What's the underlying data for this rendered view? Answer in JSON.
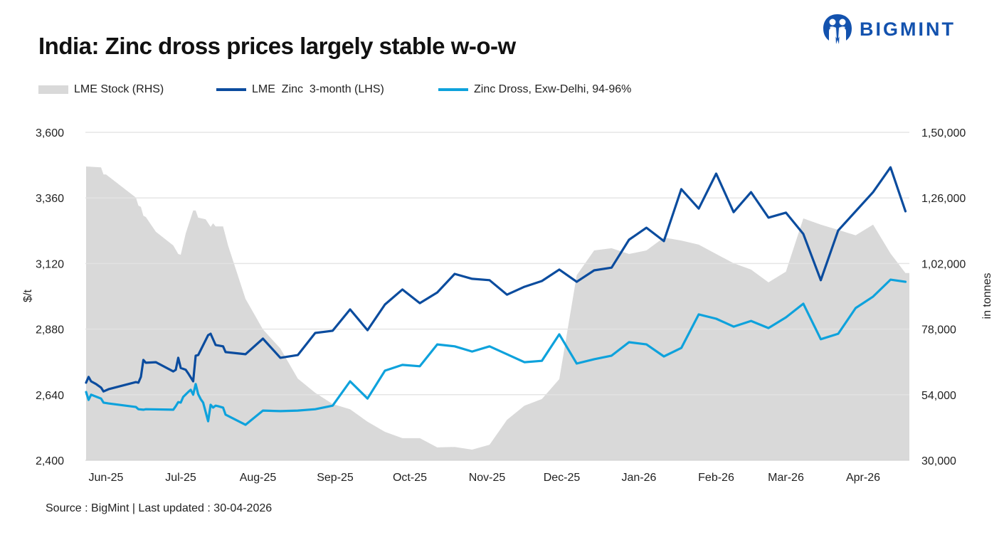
{
  "header": {
    "title": "India: Zinc dross prices largely stable w-o-w",
    "logo_text": "BIGMINT"
  },
  "footer": {
    "source": "Source : BigMint | Last updated : 30-04-2026"
  },
  "colors": {
    "lme_stock": "#d9d9d9",
    "lme_zinc": "#0b4c9e",
    "zinc_dross": "#0ea2dc",
    "grid": "#e3e3e3",
    "brand": "#1352ae"
  },
  "chart_data": {
    "type": "line",
    "title": "India: Zinc dross prices largely stable w-o-w",
    "ylabel": "$/t",
    "y2label": "in tonnes",
    "ylim": [
      2400,
      3600
    ],
    "y2lim": [
      30000,
      150000
    ],
    "xlim": [
      "2025-06-05",
      "2026-05-01"
    ],
    "grid": true,
    "legend_placement": "top",
    "yticks": [
      "2,400",
      "2,640",
      "2,880",
      "3,120",
      "3,360",
      "3,600"
    ],
    "y2ticks": [
      "30,000",
      "54,000",
      "78,000",
      "1,02,000",
      "1,26,000",
      "1,50,000"
    ],
    "xtick_labels": [
      "Jun-25",
      "Jul-25",
      "Aug-25",
      "Sep-25",
      "Oct-25",
      "Nov-25",
      "Dec-25",
      "Jan-26",
      "Feb-26",
      "Mar-26",
      "Apr-26"
    ],
    "series": [
      {
        "name": "LME Stock (RHS)",
        "type": "area",
        "axis": "right",
        "points": [
          [
            "2025-06-05",
            137500
          ],
          [
            "2025-06-11",
            137200
          ],
          [
            "2025-06-12",
            134600
          ],
          [
            "2025-06-13",
            134600
          ],
          [
            "2025-06-25",
            126100
          ],
          [
            "2025-06-26",
            123200
          ],
          [
            "2025-06-27",
            122700
          ],
          [
            "2025-06-28",
            119500
          ],
          [
            "2025-06-29",
            119000
          ],
          [
            "2025-07-03",
            113600
          ],
          [
            "2025-07-10",
            108600
          ],
          [
            "2025-07-12",
            105500
          ],
          [
            "2025-07-13",
            105200
          ],
          [
            "2025-07-15",
            113000
          ],
          [
            "2025-07-18",
            121400
          ],
          [
            "2025-07-19",
            121400
          ],
          [
            "2025-07-20",
            118800
          ],
          [
            "2025-07-23",
            118200
          ],
          [
            "2025-07-25",
            115400
          ],
          [
            "2025-07-26",
            116700
          ],
          [
            "2025-07-27",
            115600
          ],
          [
            "2025-07-30",
            115600
          ],
          [
            "2025-08-01",
            108600
          ],
          [
            "2025-08-08",
            89100
          ],
          [
            "2025-08-15",
            77900
          ],
          [
            "2025-08-22",
            70900
          ],
          [
            "2025-08-29",
            59900
          ],
          [
            "2025-09-05",
            54700
          ],
          [
            "2025-09-12",
            50600
          ],
          [
            "2025-09-19",
            48700
          ],
          [
            "2025-09-26",
            44100
          ],
          [
            "2025-10-03",
            40400
          ],
          [
            "2025-10-10",
            38100
          ],
          [
            "2025-10-17",
            38100
          ],
          [
            "2025-10-24",
            34700
          ],
          [
            "2025-10-31",
            34900
          ],
          [
            "2025-11-07",
            33900
          ],
          [
            "2025-11-14",
            35700
          ],
          [
            "2025-11-21",
            44800
          ],
          [
            "2025-11-28",
            50000
          ],
          [
            "2025-12-05",
            52400
          ],
          [
            "2025-12-12",
            59700
          ],
          [
            "2025-12-19",
            97700
          ],
          [
            "2025-12-26",
            106800
          ],
          [
            "2026-01-02",
            107600
          ],
          [
            "2026-01-09",
            105500
          ],
          [
            "2026-01-16",
            106800
          ],
          [
            "2026-01-23",
            111500
          ],
          [
            "2026-01-30",
            110400
          ],
          [
            "2026-02-06",
            108900
          ],
          [
            "2026-02-13",
            105500
          ],
          [
            "2026-02-20",
            102100
          ],
          [
            "2026-02-27",
            99800
          ],
          [
            "2026-03-06",
            95100
          ],
          [
            "2026-03-13",
            99000
          ],
          [
            "2026-03-20",
            118500
          ],
          [
            "2026-03-27",
            116200
          ],
          [
            "2026-04-03",
            114300
          ],
          [
            "2026-04-10",
            112300
          ],
          [
            "2026-04-17",
            116200
          ],
          [
            "2026-04-24",
            105700
          ],
          [
            "2026-04-30",
            98500
          ]
        ]
      },
      {
        "name": "LME  Zinc  3-month (LHS)",
        "type": "line",
        "axis": "left",
        "points": [
          [
            "2025-06-05",
            2684
          ],
          [
            "2025-06-06",
            2705
          ],
          [
            "2025-06-07",
            2689
          ],
          [
            "2025-06-09",
            2679
          ],
          [
            "2025-06-11",
            2666
          ],
          [
            "2025-06-12",
            2652
          ],
          [
            "2025-06-14",
            2660
          ],
          [
            "2025-06-25",
            2686
          ],
          [
            "2025-06-26",
            2684
          ],
          [
            "2025-06-27",
            2705
          ],
          [
            "2025-06-28",
            2767
          ],
          [
            "2025-06-29",
            2757
          ],
          [
            "2025-07-03",
            2759
          ],
          [
            "2025-07-10",
            2725
          ],
          [
            "2025-07-11",
            2731
          ],
          [
            "2025-07-12",
            2775
          ],
          [
            "2025-07-13",
            2738
          ],
          [
            "2025-07-15",
            2731
          ],
          [
            "2025-07-16",
            2718
          ],
          [
            "2025-07-18",
            2689
          ],
          [
            "2025-07-19",
            2783
          ],
          [
            "2025-07-20",
            2785
          ],
          [
            "2025-07-24",
            2858
          ],
          [
            "2025-07-25",
            2863
          ],
          [
            "2025-07-27",
            2822
          ],
          [
            "2025-07-30",
            2817
          ],
          [
            "2025-07-31",
            2796
          ],
          [
            "2025-08-08",
            2788
          ],
          [
            "2025-08-15",
            2845
          ],
          [
            "2025-08-22",
            2775
          ],
          [
            "2025-08-29",
            2785
          ],
          [
            "2025-09-05",
            2866
          ],
          [
            "2025-09-12",
            2874
          ],
          [
            "2025-09-19",
            2952
          ],
          [
            "2025-09-26",
            2876
          ],
          [
            "2025-10-03",
            2970
          ],
          [
            "2025-10-10",
            3025
          ],
          [
            "2025-10-17",
            2975
          ],
          [
            "2025-10-24",
            3014
          ],
          [
            "2025-10-31",
            3082
          ],
          [
            "2025-11-07",
            3064
          ],
          [
            "2025-11-14",
            3059
          ],
          [
            "2025-11-21",
            3006
          ],
          [
            "2025-11-28",
            3035
          ],
          [
            "2025-12-05",
            3056
          ],
          [
            "2025-12-12",
            3098
          ],
          [
            "2025-12-19",
            3053
          ],
          [
            "2025-12-26",
            3095
          ],
          [
            "2026-01-02",
            3105
          ],
          [
            "2026-01-09",
            3207
          ],
          [
            "2026-01-16",
            3251
          ],
          [
            "2026-01-23",
            3202
          ],
          [
            "2026-01-30",
            3392
          ],
          [
            "2026-02-06",
            3321
          ],
          [
            "2026-02-13",
            3449
          ],
          [
            "2026-02-20",
            3308
          ],
          [
            "2026-02-27",
            3381
          ],
          [
            "2026-03-06",
            3288
          ],
          [
            "2026-03-13",
            3306
          ],
          [
            "2026-03-20",
            3228
          ],
          [
            "2026-03-27",
            3059
          ],
          [
            "2026-04-03",
            3241
          ],
          [
            "2026-04-10",
            3311
          ],
          [
            "2026-04-17",
            3381
          ],
          [
            "2026-04-24",
            3472
          ],
          [
            "2026-04-30",
            3311
          ]
        ]
      },
      {
        "name": "Zinc Dross, Exw-Delhi, 94-96%",
        "type": "line",
        "axis": "left",
        "points": [
          [
            "2025-06-05",
            2650
          ],
          [
            "2025-06-06",
            2621
          ],
          [
            "2025-06-07",
            2640
          ],
          [
            "2025-06-11",
            2626
          ],
          [
            "2025-06-12",
            2611
          ],
          [
            "2025-06-14",
            2608
          ],
          [
            "2025-06-25",
            2595
          ],
          [
            "2025-06-26",
            2587
          ],
          [
            "2025-06-28",
            2585
          ],
          [
            "2025-06-29",
            2587
          ],
          [
            "2025-07-10",
            2585
          ],
          [
            "2025-07-11",
            2598
          ],
          [
            "2025-07-12",
            2613
          ],
          [
            "2025-07-13",
            2611
          ],
          [
            "2025-07-14",
            2632
          ],
          [
            "2025-07-16",
            2650
          ],
          [
            "2025-07-17",
            2658
          ],
          [
            "2025-07-18",
            2640
          ],
          [
            "2025-07-19",
            2679
          ],
          [
            "2025-07-20",
            2642
          ],
          [
            "2025-07-21",
            2624
          ],
          [
            "2025-07-22",
            2611
          ],
          [
            "2025-07-24",
            2543
          ],
          [
            "2025-07-25",
            2603
          ],
          [
            "2025-07-26",
            2593
          ],
          [
            "2025-07-27",
            2600
          ],
          [
            "2025-07-28",
            2598
          ],
          [
            "2025-07-30",
            2593
          ],
          [
            "2025-07-31",
            2567
          ],
          [
            "2025-08-08",
            2530
          ],
          [
            "2025-08-15",
            2582
          ],
          [
            "2025-08-22",
            2580
          ],
          [
            "2025-08-29",
            2582
          ],
          [
            "2025-09-05",
            2587
          ],
          [
            "2025-09-12",
            2600
          ],
          [
            "2025-09-19",
            2689
          ],
          [
            "2025-09-26",
            2626
          ],
          [
            "2025-10-03",
            2728
          ],
          [
            "2025-10-10",
            2749
          ],
          [
            "2025-10-17",
            2744
          ],
          [
            "2025-10-24",
            2824
          ],
          [
            "2025-10-31",
            2817
          ],
          [
            "2025-11-07",
            2798
          ],
          [
            "2025-11-14",
            2817
          ],
          [
            "2025-11-21",
            2788
          ],
          [
            "2025-11-28",
            2759
          ],
          [
            "2025-12-05",
            2764
          ],
          [
            "2025-12-12",
            2861
          ],
          [
            "2025-12-19",
            2754
          ],
          [
            "2025-12-26",
            2770
          ],
          [
            "2026-01-02",
            2783
          ],
          [
            "2026-01-09",
            2832
          ],
          [
            "2026-01-16",
            2824
          ],
          [
            "2026-01-23",
            2780
          ],
          [
            "2026-01-30",
            2811
          ],
          [
            "2026-02-06",
            2934
          ],
          [
            "2026-02-13",
            2918
          ],
          [
            "2026-02-20",
            2889
          ],
          [
            "2026-02-27",
            2910
          ],
          [
            "2026-03-06",
            2884
          ],
          [
            "2026-03-13",
            2923
          ],
          [
            "2026-03-20",
            2973
          ],
          [
            "2026-03-27",
            2843
          ],
          [
            "2026-04-03",
            2863
          ],
          [
            "2026-04-10",
            2957
          ],
          [
            "2026-04-17",
            2999
          ],
          [
            "2026-04-24",
            3061
          ],
          [
            "2026-04-30",
            3053
          ]
        ]
      }
    ]
  }
}
